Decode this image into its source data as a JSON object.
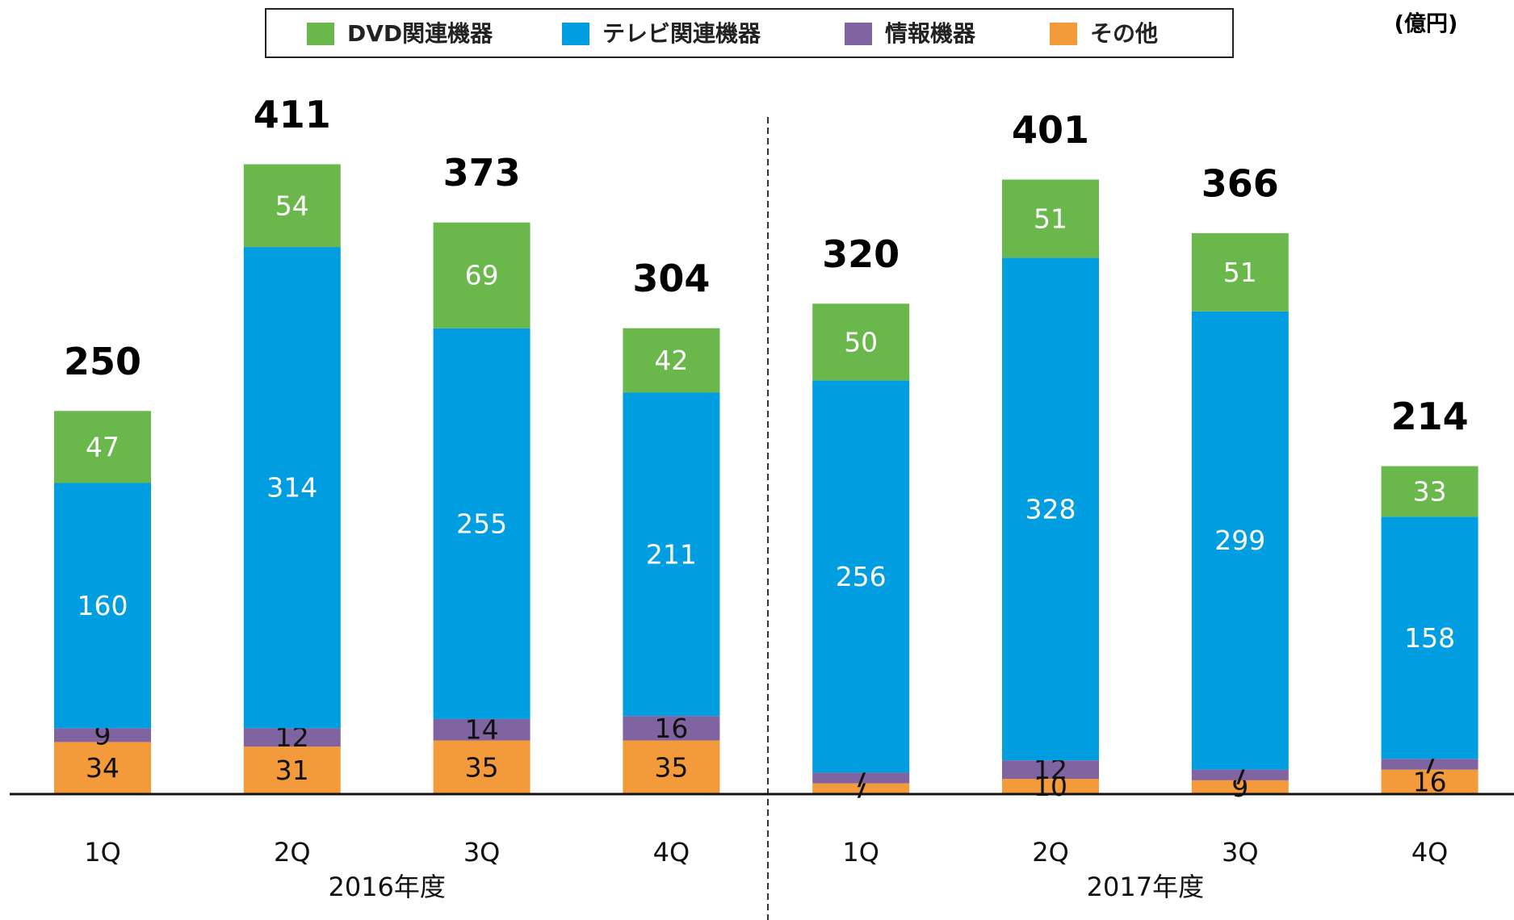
{
  "chart_data": {
    "type": "stacked_bar",
    "unit": "(億円)",
    "categories": [
      "1Q",
      "2Q",
      "3Q",
      "4Q",
      "1Q",
      "2Q",
      "3Q",
      "4Q"
    ],
    "groups": [
      {
        "label": "2016年度",
        "size": 4
      },
      {
        "label": "2017年度",
        "size": 4
      }
    ],
    "series": [
      {
        "name": "DVD関連機器",
        "color": "#6ab84c",
        "values": [
          47,
          54,
          69,
          42,
          50,
          51,
          51,
          33
        ]
      },
      {
        "name": "テレビ関連機器",
        "color": "#009ee0",
        "values": [
          160,
          314,
          255,
          211,
          256,
          328,
          299,
          158
        ]
      },
      {
        "name": "情報機器",
        "color": "#8064a2",
        "values": [
          9,
          12,
          14,
          16,
          7,
          12,
          7,
          7
        ]
      },
      {
        "name": "その他",
        "color": "#f39a3b",
        "values": [
          34,
          31,
          35,
          35,
          7,
          10,
          9,
          16
        ]
      }
    ],
    "totals": [
      250,
      411,
      373,
      304,
      320,
      401,
      366,
      214
    ]
  }
}
